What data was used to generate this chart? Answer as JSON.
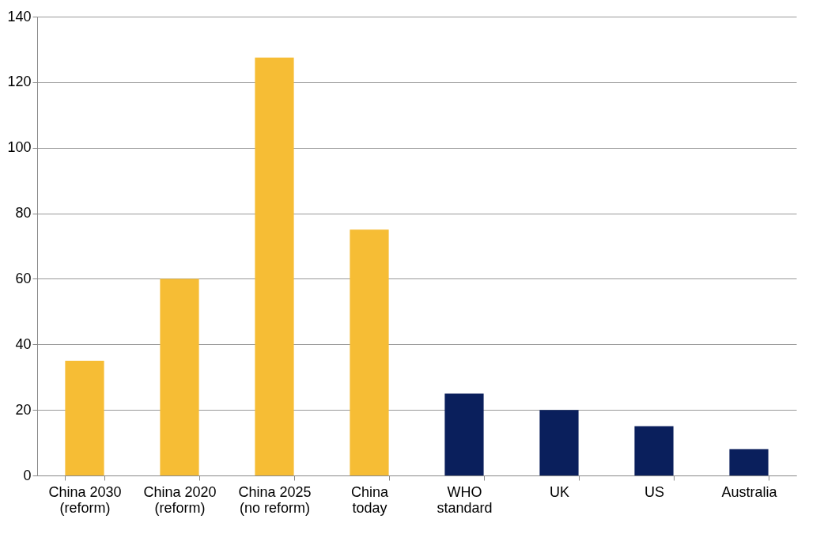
{
  "chart_data": {
    "type": "bar",
    "categories": [
      "China 2030\n(reform)",
      "China 2020\n(reform)",
      "China 2025\n(no reform)",
      "China\ntoday",
      "WHO\nstandard",
      "UK",
      "US",
      "Australia"
    ],
    "values": [
      35,
      60,
      127.5,
      75,
      25,
      20,
      15,
      8
    ],
    "colors": [
      "#f6bd35",
      "#f6bd35",
      "#f6bd35",
      "#f6bd35",
      "#0a1f5c",
      "#0a1f5c",
      "#0a1f5c",
      "#0a1f5c"
    ],
    "ylim": [
      0,
      140
    ],
    "yticks": [
      0,
      20,
      40,
      60,
      80,
      100,
      120,
      140
    ],
    "grid": "y"
  }
}
